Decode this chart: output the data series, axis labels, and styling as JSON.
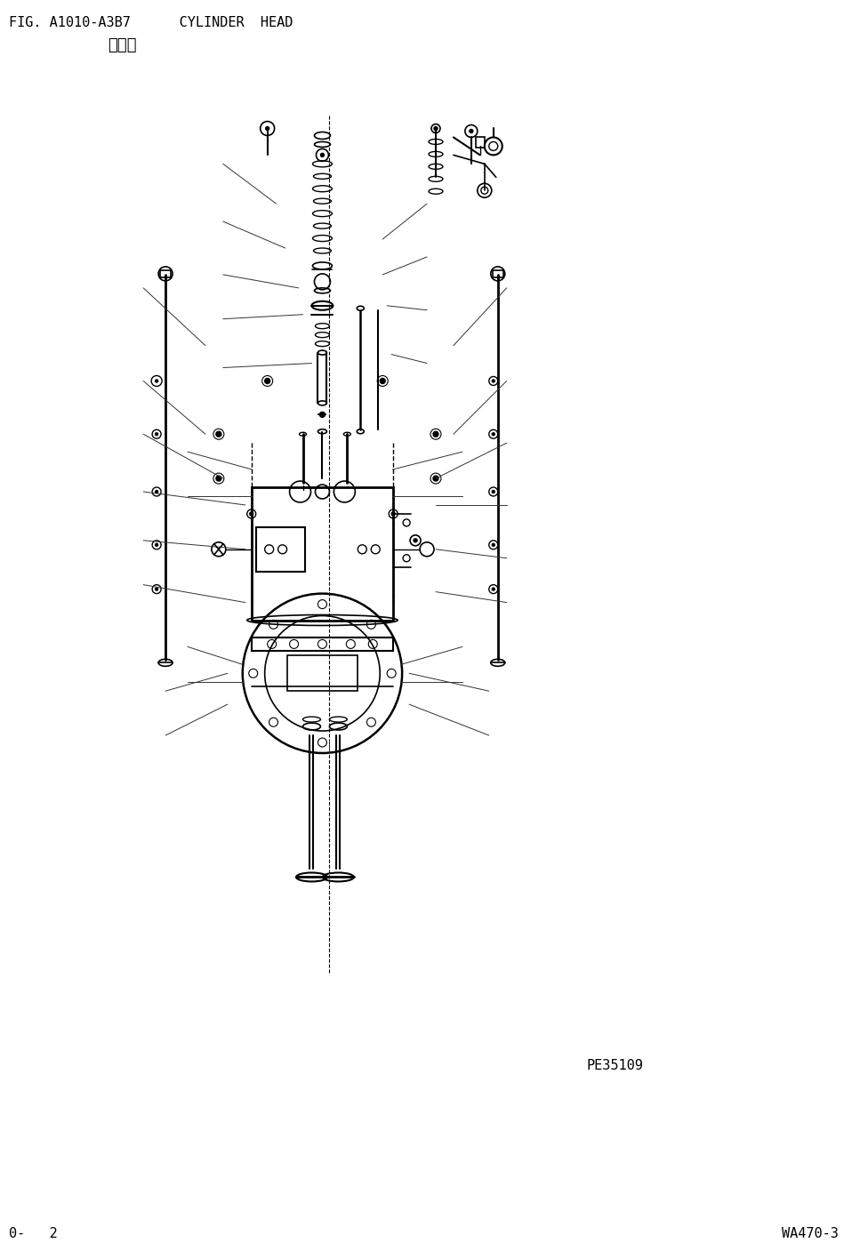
{
  "title_line1": "FIG. A1010-A3B7      CYLINDER  HEAD",
  "title_line2": "气缸盖",
  "footer_left": "0-   2",
  "footer_right": "WA470-3",
  "watermark": "PE35109",
  "bg_color": "#ffffff",
  "line_color": "#000000",
  "fig_width": 9.76,
  "fig_height": 13.98,
  "dpi": 100
}
